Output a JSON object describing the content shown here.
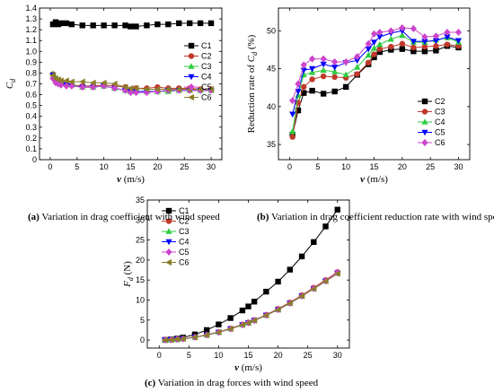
{
  "chart_data": [
    {
      "type": "line",
      "panel": "a",
      "caption_id": "(a)",
      "caption_text": " Variation in drag coefficient with wind speed",
      "ylabel_main": "C",
      "ylabel_sub": "d",
      "xlabel": "v (m/s)",
      "xlim": [
        -2,
        32
      ],
      "ylim": [
        0,
        1.4
      ],
      "xticks": [
        "0",
        "5",
        "10",
        "15",
        "20",
        "25",
        "30"
      ],
      "yticks": [
        "0",
        "0.1",
        "0.2",
        "0.3",
        "0.4",
        "0.5",
        "0.6",
        "0.7",
        "0.8",
        "0.9",
        "1.0",
        "1.1",
        "1.2",
        "1.3",
        "1.4"
      ],
      "legend_position": "right",
      "x": [
        0.5,
        1,
        1.5,
        2,
        3,
        4,
        6,
        8,
        10,
        12,
        14,
        15,
        16,
        18,
        20,
        22,
        24,
        26,
        28,
        30
      ],
      "series": [
        {
          "name": "C1",
          "color": "#000000",
          "marker": "square",
          "values": [
            1.25,
            1.27,
            1.25,
            1.26,
            1.26,
            1.25,
            1.24,
            1.24,
            1.24,
            1.24,
            1.24,
            1.23,
            1.23,
            1.24,
            1.25,
            1.25,
            1.26,
            1.26,
            1.26,
            1.26
          ]
        },
        {
          "name": "C2",
          "color": "#c0392b",
          "marker": "circle",
          "values": [
            0.79,
            0.74,
            0.72,
            0.71,
            0.7,
            0.69,
            0.68,
            0.68,
            0.69,
            0.68,
            0.67,
            0.65,
            0.66,
            0.66,
            0.67,
            0.66,
            0.66,
            0.66,
            0.65,
            0.65
          ]
        },
        {
          "name": "C3",
          "color": "#2ecc40",
          "marker": "triangle-up",
          "values": [
            0.79,
            0.76,
            0.73,
            0.71,
            0.7,
            0.69,
            0.67,
            0.67,
            0.68,
            0.66,
            0.64,
            0.63,
            0.63,
            0.63,
            0.63,
            0.63,
            0.64,
            0.64,
            0.64,
            0.64
          ]
        },
        {
          "name": "C4",
          "color": "#0000ff",
          "marker": "triangle-down",
          "values": [
            0.78,
            0.73,
            0.71,
            0.7,
            0.69,
            0.68,
            0.67,
            0.67,
            0.68,
            0.66,
            0.64,
            0.63,
            0.63,
            0.63,
            0.63,
            0.64,
            0.64,
            0.64,
            0.64,
            0.64
          ]
        },
        {
          "name": "C5",
          "color": "#cc44cc",
          "marker": "diamond",
          "values": [
            0.75,
            0.71,
            0.7,
            0.69,
            0.68,
            0.68,
            0.67,
            0.67,
            0.68,
            0.66,
            0.64,
            0.62,
            0.62,
            0.62,
            0.63,
            0.64,
            0.64,
            0.64,
            0.64,
            0.64
          ]
        },
        {
          "name": "C6",
          "color": "#8b7d2a",
          "marker": "triangle-left",
          "values": [
            0.78,
            0.75,
            0.74,
            0.73,
            0.73,
            0.72,
            0.72,
            0.71,
            0.71,
            0.7,
            0.67,
            0.66,
            0.66,
            0.65,
            0.65,
            0.65,
            0.65,
            0.65,
            0.65,
            0.65
          ]
        }
      ]
    },
    {
      "type": "line",
      "panel": "b",
      "caption_id": "(b)",
      "caption_text": " Variation in drag coefficient reduction rate with wind speed",
      "ylabel_pre": "Reduction rate of ",
      "ylabel_main": "C",
      "ylabel_sub": "d",
      "ylabel_post": " (%)",
      "xlabel": "v (m/s)",
      "xlim": [
        -2,
        32
      ],
      "ylim": [
        33,
        53
      ],
      "xticks": [
        "0",
        "5",
        "10",
        "15",
        "20",
        "25",
        "30"
      ],
      "yticks": [
        "35",
        "40",
        "45",
        "50"
      ],
      "legend_position": "bottom-right",
      "x": [
        0.5,
        1.5,
        2.5,
        4,
        6,
        8,
        10,
        12,
        14,
        15,
        16,
        18,
        20,
        22,
        24,
        26,
        28,
        30
      ],
      "series": [
        {
          "name": "C2",
          "color": "#000000",
          "marker": "square",
          "values": [
            36.3,
            39.5,
            41.8,
            42.1,
            41.7,
            42.0,
            42.6,
            44.2,
            45.6,
            46.5,
            47.2,
            47.5,
            47.6,
            47.3,
            47.3,
            47.4,
            48.0,
            47.8
          ]
        },
        {
          "name": "C3",
          "color": "#c0392b",
          "marker": "circle",
          "values": [
            36.0,
            40.5,
            42.6,
            43.6,
            44.0,
            43.9,
            43.8,
            44.3,
            45.8,
            46.9,
            47.6,
            47.9,
            48.3,
            47.8,
            47.9,
            48.0,
            48.2,
            48.0
          ]
        },
        {
          "name": "C4",
          "color": "#2ecc40",
          "marker": "triangle-up",
          "values": [
            36.7,
            41.5,
            44.2,
            44.5,
            44.8,
            44.6,
            44.2,
            45.2,
            46.8,
            47.7,
            48.2,
            48.9,
            49.4,
            48.5,
            48.5,
            48.8,
            49.1,
            48.5
          ]
        },
        {
          "name": "C5",
          "color": "#0000ff",
          "marker": "triangle-down",
          "values": [
            39.0,
            42.0,
            44.8,
            45.0,
            45.6,
            45.2,
            45.8,
            46.1,
            47.6,
            48.5,
            49.2,
            49.7,
            50.0,
            48.6,
            48.6,
            48.7,
            49.2,
            48.7
          ]
        },
        {
          "name": "C6",
          "color": "#cc44cc",
          "marker": "diamond",
          "values": [
            40.8,
            43.0,
            45.5,
            46.3,
            46.3,
            45.9,
            45.9,
            46.6,
            48.3,
            49.6,
            49.8,
            50.0,
            50.4,
            50.3,
            49.2,
            49.3,
            49.8,
            49.8
          ]
        }
      ]
    },
    {
      "type": "line",
      "panel": "c",
      "caption_id": "(c)",
      "caption_text": " Variation in drag forces with wind speed",
      "ylabel_main": "F",
      "ylabel_sub": "d",
      "ylabel_post": " (N)",
      "xlabel": "v (m/s)",
      "xlim": [
        -2,
        32
      ],
      "ylim": [
        -2,
        35
      ],
      "xticks": [
        "0",
        "5",
        "10",
        "15",
        "20",
        "25",
        "30"
      ],
      "yticks": [
        "0",
        "5",
        "10",
        "15",
        "20",
        "25",
        "30",
        "35"
      ],
      "legend_position": "top-left",
      "x": [
        1,
        2,
        3,
        4,
        6,
        8,
        10,
        12,
        14,
        15,
        16,
        18,
        20,
        22,
        24,
        26,
        28,
        30
      ],
      "series": [
        {
          "name": "C1",
          "color": "#000000",
          "marker": "square",
          "values": [
            0.04,
            0.15,
            0.35,
            0.62,
            1.4,
            2.5,
            3.9,
            5.5,
            7.4,
            8.4,
            9.6,
            12.1,
            14.6,
            17.6,
            20.9,
            24.5,
            28.4,
            32.6
          ]
        },
        {
          "name": "C2",
          "color": "#c0392b",
          "marker": "circle",
          "values": [
            0.02,
            0.08,
            0.18,
            0.32,
            0.72,
            1.3,
            2.0,
            2.9,
            3.9,
            4.4,
            5.0,
            6.3,
            7.8,
            9.4,
            11.2,
            13.1,
            15.0,
            17.0
          ]
        },
        {
          "name": "C3",
          "color": "#2ecc40",
          "marker": "triangle-up",
          "values": [
            0.02,
            0.08,
            0.18,
            0.31,
            0.7,
            1.25,
            1.95,
            2.8,
            3.8,
            4.3,
            4.9,
            6.2,
            7.6,
            9.2,
            11.0,
            12.9,
            14.8,
            16.8
          ]
        },
        {
          "name": "C4",
          "color": "#0000ff",
          "marker": "triangle-down",
          "values": [
            0.02,
            0.08,
            0.18,
            0.31,
            0.7,
            1.25,
            1.95,
            2.8,
            3.8,
            4.3,
            4.9,
            6.2,
            7.6,
            9.2,
            11.0,
            12.8,
            14.7,
            16.7
          ]
        },
        {
          "name": "C5",
          "color": "#cc44cc",
          "marker": "diamond",
          "values": [
            0.02,
            0.08,
            0.18,
            0.31,
            0.7,
            1.25,
            1.95,
            2.8,
            3.8,
            4.3,
            4.9,
            6.2,
            7.6,
            9.2,
            11.0,
            12.9,
            14.8,
            16.9
          ]
        },
        {
          "name": "C6",
          "color": "#8b7d2a",
          "marker": "triangle-left",
          "values": [
            0.02,
            0.08,
            0.18,
            0.31,
            0.7,
            1.25,
            1.95,
            2.8,
            3.8,
            4.3,
            4.9,
            6.2,
            7.6,
            9.2,
            11.0,
            12.8,
            14.7,
            16.6
          ]
        }
      ]
    }
  ]
}
